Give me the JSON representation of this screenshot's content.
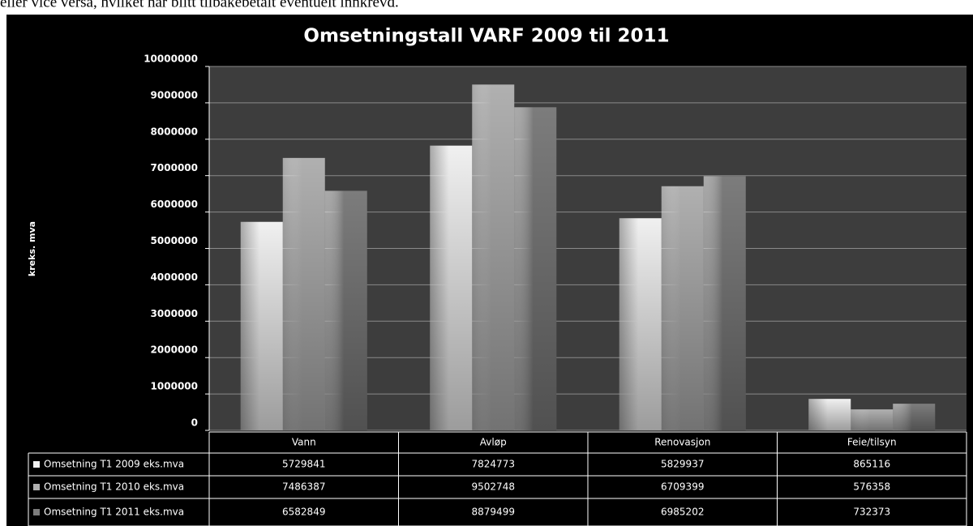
{
  "caption_above": "eller vice versa, hvilket har blitt tilbakebetalt eventuelt innkrevd.",
  "chart_data": {
    "type": "bar",
    "title": "Omsetningstall  VARF 2009 til 2011",
    "y_label": "kreks. mva",
    "categories": [
      "Vann",
      "Avløp",
      "Renovasjon",
      "Feie/tilsyn"
    ],
    "series": [
      {
        "name": "Omsetning T1 2009 eks.mva",
        "color": "#f0f0f0",
        "values": [
          5729841,
          7824773,
          5829937,
          865116
        ]
      },
      {
        "name": "Omsetning T1 2010 eks.mva",
        "color": "#b0b0b0",
        "values": [
          7486387,
          9502748,
          6709399,
          576358
        ]
      },
      {
        "name": "Omsetning T1 2011 eks.mva",
        "color": "#7c7c7c",
        "values": [
          6582849,
          8879499,
          6985202,
          732373
        ]
      }
    ],
    "ylim": [
      0,
      10000000
    ],
    "yticks": [
      0,
      1000000,
      2000000,
      3000000,
      4000000,
      5000000,
      6000000,
      7000000,
      8000000,
      9000000,
      10000000
    ],
    "grid": true,
    "data_table": true
  }
}
